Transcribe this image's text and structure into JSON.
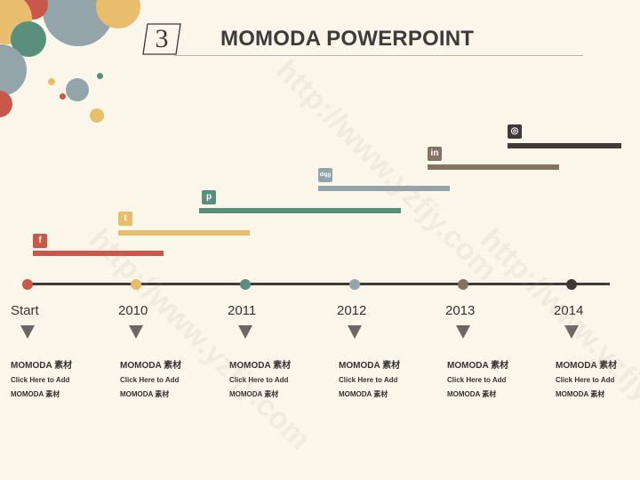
{
  "header": {
    "number": "3",
    "title": "MOMODA POWERPOINT"
  },
  "colors": {
    "red": "#c9584a",
    "yellow": "#e8bd6b",
    "teal": "#5a8f7d",
    "gray_blue": "#93a4ab",
    "brown": "#857260",
    "dark": "#3d3a37"
  },
  "timeline": [
    {
      "label": "Start",
      "icon": "facebook-icon",
      "glyph": "f",
      "color": "#c9584a",
      "title": "MOMODA 素材",
      "line1": "Click Here to Add",
      "line2": "MOMODA 素材"
    },
    {
      "label": "2010",
      "icon": "twitter-icon",
      "glyph": "t",
      "color": "#e8bd6b",
      "title": "MOMODA 素材",
      "line1": "Click Here to Add",
      "line2": "MOMODA 素材"
    },
    {
      "label": "2011",
      "icon": "pinterest-icon",
      "glyph": "p",
      "color": "#5a8f7d",
      "title": "MOMODA 素材",
      "line1": "Click Here to Add",
      "line2": "MOMODA 素材"
    },
    {
      "label": "2012",
      "icon": "digg-icon",
      "glyph": "digg",
      "color": "#93a4ab",
      "title": "MOMODA 素材",
      "line1": "Click Here to Add",
      "line2": "MOMODA 素材"
    },
    {
      "label": "2013",
      "icon": "linkedin-icon",
      "glyph": "in",
      "color": "#857260",
      "title": "MOMODA 素材",
      "line1": "Click Here to Add",
      "line2": "MOMODA 素材"
    },
    {
      "label": "2014",
      "icon": "dribbble-icon",
      "glyph": "◎",
      "color": "#3d3a37",
      "title": "MOMODA 素材",
      "line1": "Click Here to Add",
      "line2": "MOMODA 素材"
    }
  ]
}
